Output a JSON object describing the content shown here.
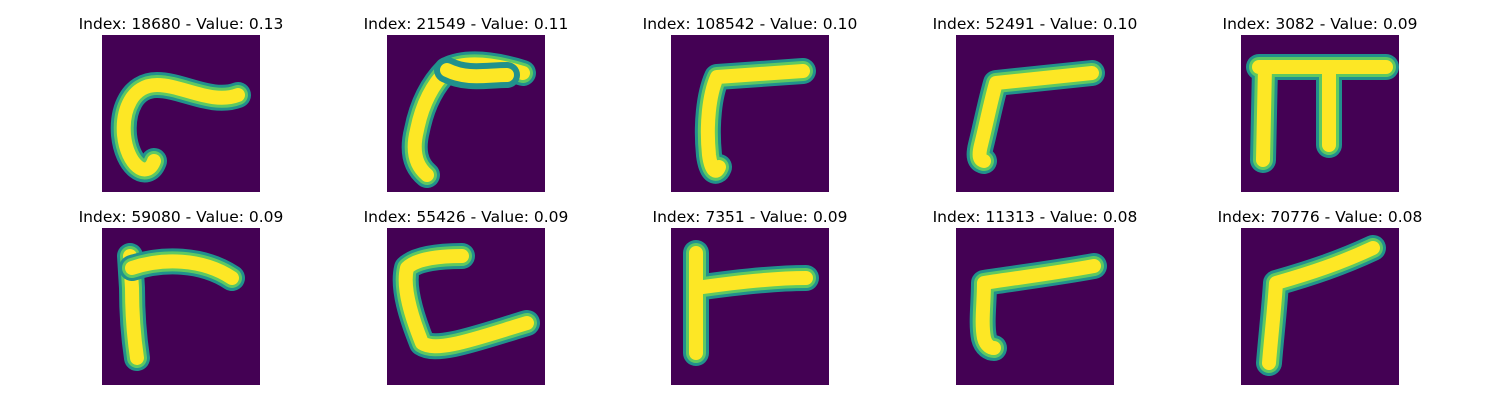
{
  "panels": [
    {
      "title": "Index: 18680 - Value: 0.13",
      "glyph": "hook-glyph"
    },
    {
      "title": "Index: 21549 - Value: 0.11",
      "glyph": "wing-glyph"
    },
    {
      "title": "Index: 108542 - Value: 0.10",
      "glyph": "gamma-glyph"
    },
    {
      "title": "Index: 52491 - Value: 0.10",
      "glyph": "gamma-glyph"
    },
    {
      "title": "Index: 3082 - Value: 0.09",
      "glyph": "pi-glyph"
    },
    {
      "title": "Index: 59080 - Value: 0.09",
      "glyph": "gamma-glyph"
    },
    {
      "title": "Index: 55426 - Value: 0.09",
      "glyph": "c-glyph"
    },
    {
      "title": "Index: 7351 - Value: 0.09",
      "glyph": "t-glyph"
    },
    {
      "title": "Index: 11313 - Value: 0.08",
      "glyph": "gamma-glyph"
    },
    {
      "title": "Index: 70776 - Value: 0.08",
      "glyph": "gamma-glyph"
    }
  ],
  "colors": {
    "background": "#440154",
    "stroke_outer": "#21918c",
    "stroke_mid": "#5ec962",
    "stroke_core": "#fde725"
  }
}
